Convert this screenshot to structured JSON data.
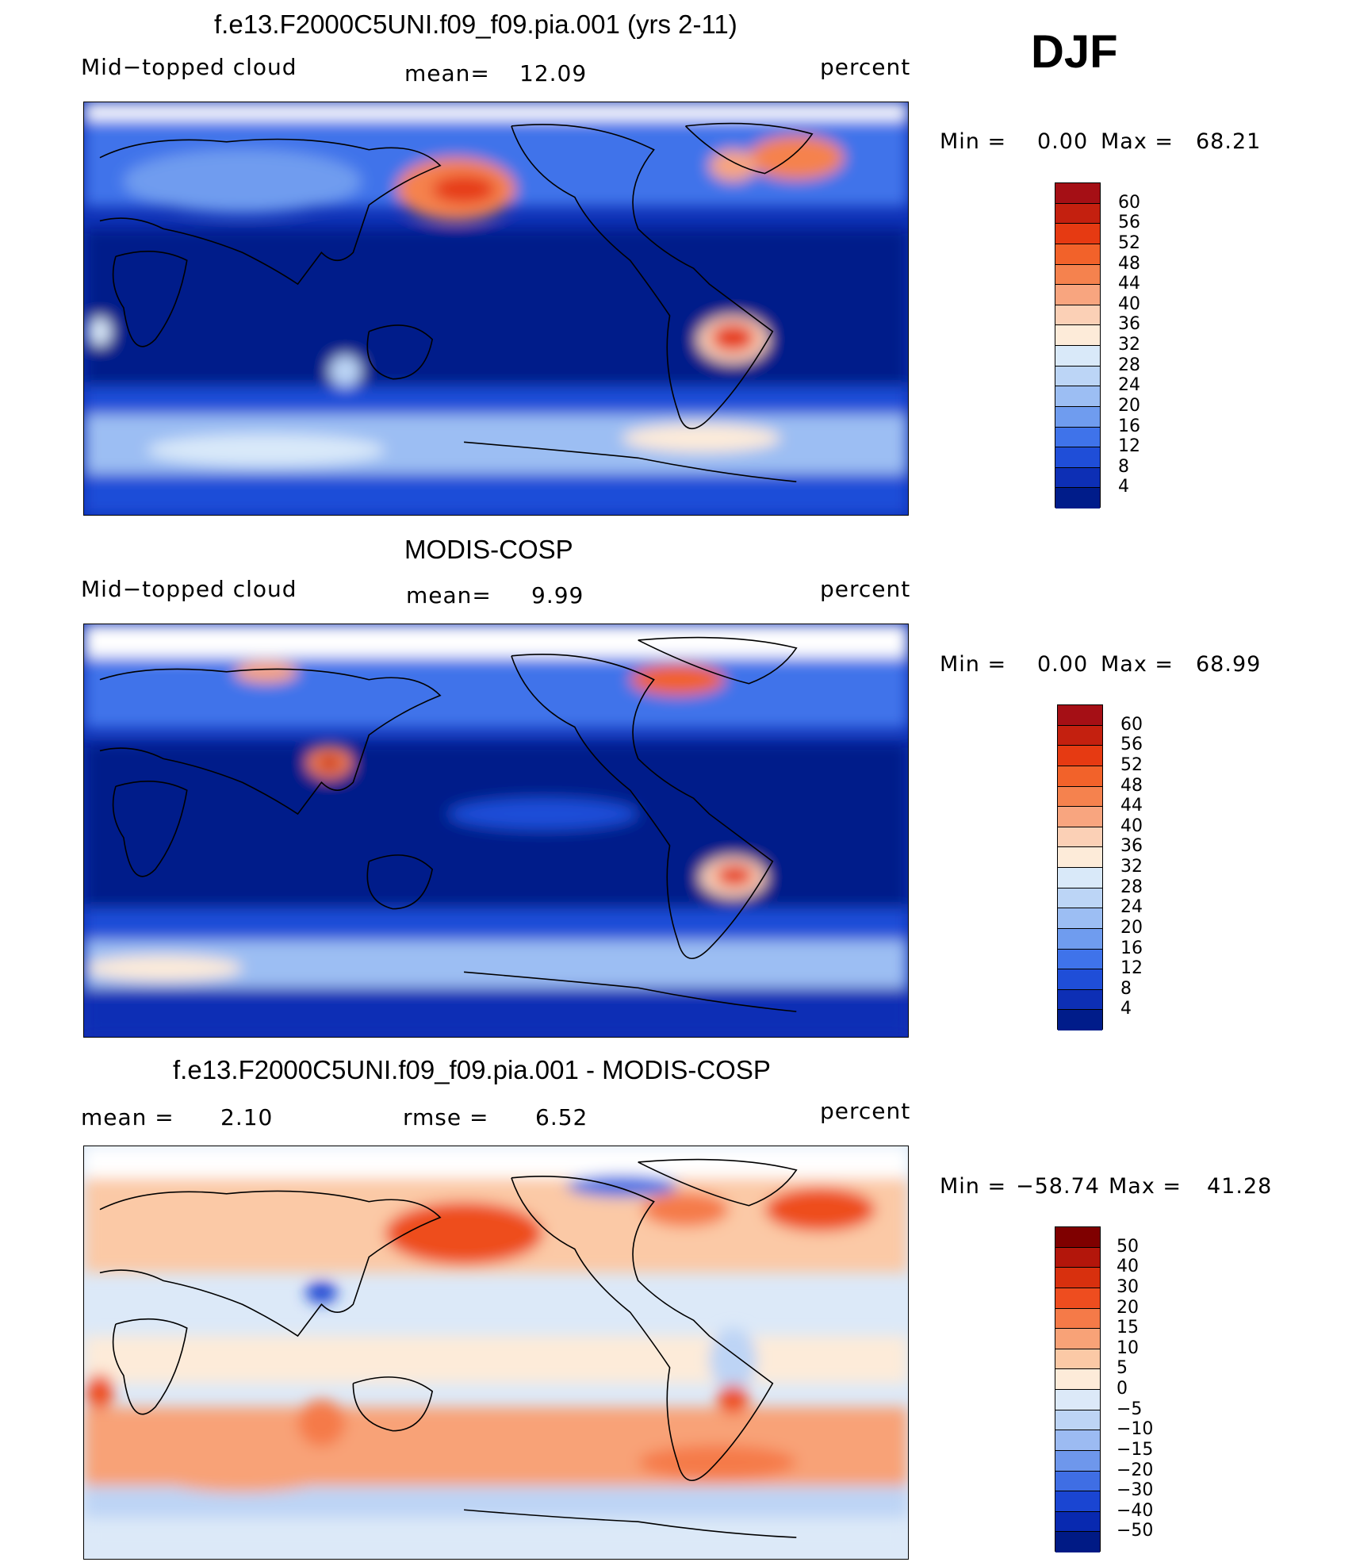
{
  "season": "DJF",
  "panels": [
    {
      "title": "f.e13.F2000C5UNI.f09_f09.pia.001 (yrs 2-11)",
      "variable": "Mid−topped cloud",
      "mean_label": "mean=",
      "mean_value": "12.09",
      "units": "percent",
      "min_label": "Min  =",
      "min_value": "0.00",
      "max_label": "Max  =",
      "max_value": "68.21",
      "colorbar_labels": [
        "60",
        "56",
        "52",
        "48",
        "44",
        "40",
        "36",
        "32",
        "28",
        "24",
        "20",
        "16",
        "12",
        "8",
        "4"
      ]
    },
    {
      "title": "MODIS-COSP",
      "variable": "Mid−topped cloud",
      "mean_label": "mean=",
      "mean_value": "9.99",
      "units": "percent",
      "min_label": "Min  =",
      "min_value": "0.00",
      "max_label": "Max  =",
      "max_value": "68.99",
      "colorbar_labels": [
        "60",
        "56",
        "52",
        "48",
        "44",
        "40",
        "36",
        "32",
        "28",
        "24",
        "20",
        "16",
        "12",
        "8",
        "4"
      ]
    },
    {
      "title": "f.e13.F2000C5UNI.f09_f09.pia.001 - MODIS-COSP",
      "mean_label": "mean  =",
      "mean_value": "2.10",
      "rmse_label": "rmse  =",
      "rmse_value": "6.52",
      "units": "percent",
      "min_label": "Min  =",
      "min_value": "−58.74",
      "max_label": "Max  =",
      "max_value": "41.28",
      "colorbar_labels": [
        "50",
        "40",
        "30",
        "20",
        "15",
        "10",
        "5",
        "0",
        "−5",
        "−10",
        "−15",
        "−20",
        "−30",
        "−40",
        "−50"
      ]
    }
  ],
  "colors": {
    "seq_scale": [
      "#a50f15",
      "#c4200f",
      "#e63a12",
      "#f2622a",
      "#f5824e",
      "#f8a57f",
      "#fbd0b6",
      "#fdebd9",
      "#d9e9f9",
      "#bcd5f6",
      "#9cbef3",
      "#6f9cef",
      "#3f73ea",
      "#1f4ed8",
      "#0d2fb5",
      "#001c8a"
    ],
    "diff_scale": [
      "#7f0000",
      "#b3160b",
      "#d8300e",
      "#ee4d1f",
      "#f57a48",
      "#f8a277",
      "#fbc9a6",
      "#fdebd9",
      "#dce9f8",
      "#bdd4f5",
      "#9cbbf2",
      "#6e97ec",
      "#3f6ee4",
      "#1a45d2",
      "#0829b0",
      "#001a85"
    ],
    "land_line": "#000000"
  }
}
